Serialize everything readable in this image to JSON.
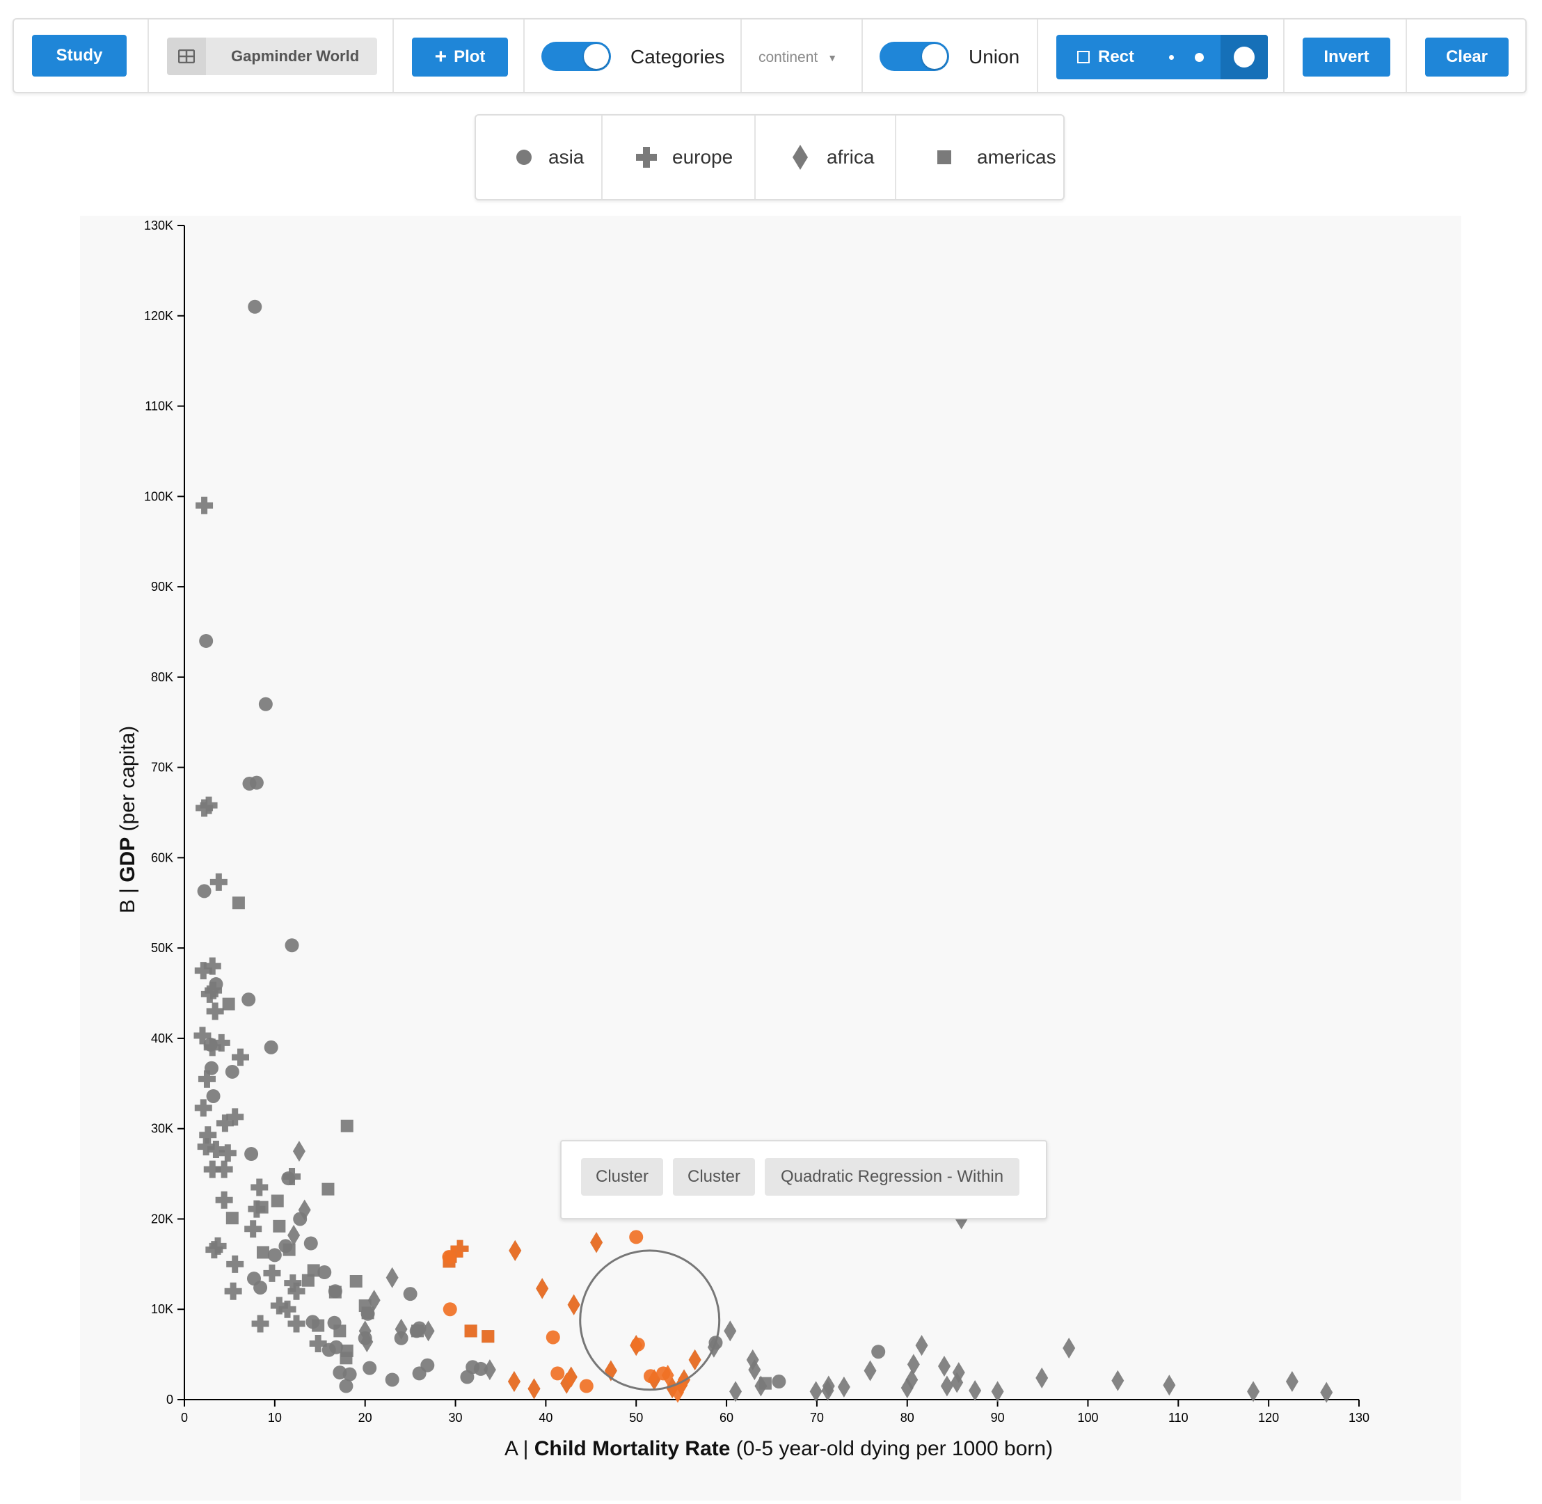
{
  "toolbar": {
    "study_label": "Study",
    "dataset_label": "Gapminder World",
    "plot_label": "Plot",
    "categories_label": "Categories",
    "categories_on": true,
    "category_select_value": "continent",
    "union_label": "Union",
    "union_on": true,
    "rect_label": "Rect",
    "invert_label": "Invert",
    "clear_label": "Clear",
    "accent_color": "#1f86d8"
  },
  "legend": {
    "items": [
      {
        "label": "asia",
        "icon": "circle-icon"
      },
      {
        "label": "europe",
        "icon": "plus-icon"
      },
      {
        "label": "africa",
        "icon": "diamond-icon"
      },
      {
        "label": "americas",
        "icon": "square-icon"
      }
    ]
  },
  "popup": {
    "chips": [
      "Cluster",
      "Cluster",
      "Quadratic Regression - Within"
    ]
  },
  "chart_data": {
    "type": "scatter",
    "x_axis": {
      "prefix": "A | ",
      "bold": "Child Mortality Rate",
      "suffix": " (0-5 year-old dying per 1000 born)",
      "range": [
        0,
        130
      ],
      "ticks": [
        "0",
        "10",
        "20",
        "30",
        "40",
        "50",
        "60",
        "70",
        "80",
        "90",
        "100",
        "110",
        "120",
        "130"
      ]
    },
    "y_axis": {
      "prefix": "B | ",
      "bold": "GDP",
      "suffix": " (per capita)",
      "range": [
        0,
        130000
      ],
      "ticks": [
        "0",
        "10K",
        "20K",
        "30K",
        "40K",
        "50K",
        "60K",
        "70K",
        "80K",
        "90K",
        "100K",
        "110K",
        "120K",
        "130K"
      ]
    },
    "colors": {
      "default": "#7a7a7a",
      "selected": "#f07125",
      "lasso": "#777777"
    },
    "lasso_circle": {
      "cx": 51.5,
      "cy": 8800,
      "r_x_units": 7.7
    },
    "series": [
      {
        "name": "asia",
        "shape": "circle",
        "points": [
          [
            7.8,
            121000
          ],
          [
            2.4,
            84000
          ],
          [
            9,
            77000
          ],
          [
            7.2,
            68200
          ],
          [
            8,
            68300
          ],
          [
            2.2,
            56300
          ],
          [
            11.9,
            50300
          ],
          [
            7.1,
            44300
          ],
          [
            9.6,
            39000
          ],
          [
            3,
            36700
          ],
          [
            5.3,
            36300
          ],
          [
            3.2,
            33600
          ],
          [
            2.9,
            39300
          ],
          [
            3.5,
            46000
          ],
          [
            7.4,
            27200
          ],
          [
            11.5,
            24500
          ],
          [
            12.8,
            20000
          ],
          [
            14,
            17300
          ],
          [
            7.7,
            13400
          ],
          [
            8.4,
            12400
          ],
          [
            11.2,
            17000
          ],
          [
            10,
            16000
          ],
          [
            16.7,
            12000
          ],
          [
            15.5,
            14100
          ],
          [
            25,
            11700
          ],
          [
            20.3,
            9500
          ],
          [
            26,
            7900
          ],
          [
            20,
            6800
          ],
          [
            24,
            6800
          ],
          [
            16.8,
            5800
          ],
          [
            16,
            5500
          ],
          [
            17.2,
            3000
          ],
          [
            20.5,
            3500
          ],
          [
            18.3,
            2800
          ],
          [
            17.9,
            1500
          ],
          [
            23,
            2200
          ],
          [
            26.9,
            3800
          ],
          [
            26,
            2900
          ],
          [
            31.9,
            3600
          ],
          [
            31.3,
            2500
          ],
          [
            32.8,
            3400
          ],
          [
            58.8,
            6300
          ],
          [
            76.8,
            5300
          ],
          [
            65.8,
            2000
          ],
          [
            14.2,
            8600
          ],
          [
            16.6,
            8500
          ],
          [
            25.7,
            7600
          ]
        ]
      },
      {
        "name": "europe",
        "shape": "plus",
        "points": [
          [
            2.2,
            99000
          ],
          [
            2.2,
            65500
          ],
          [
            2.7,
            65800
          ],
          [
            3.8,
            57300
          ],
          [
            2.1,
            47500
          ],
          [
            3.1,
            48000
          ],
          [
            3.2,
            45300
          ],
          [
            2.8,
            44900
          ],
          [
            3.4,
            43000
          ],
          [
            2,
            40300
          ],
          [
            4.1,
            39500
          ],
          [
            3.1,
            39000
          ],
          [
            6.2,
            37900
          ],
          [
            2.5,
            35500
          ],
          [
            2.1,
            32300
          ],
          [
            2.6,
            29300
          ],
          [
            2.4,
            28000
          ],
          [
            3.5,
            27700
          ],
          [
            4.8,
            27300
          ],
          [
            4.5,
            30600
          ],
          [
            5.6,
            31300
          ],
          [
            3.1,
            25500
          ],
          [
            4.4,
            25500
          ],
          [
            11.9,
            24700
          ],
          [
            8.3,
            23500
          ],
          [
            4.4,
            22100
          ],
          [
            8,
            21100
          ],
          [
            7.6,
            18900
          ],
          [
            3.7,
            17000
          ],
          [
            5.6,
            15000
          ],
          [
            9.7,
            14000
          ],
          [
            5.4,
            12000
          ],
          [
            10.5,
            10400
          ],
          [
            12,
            12900
          ],
          [
            12.4,
            12000
          ],
          [
            11.4,
            10000
          ],
          [
            8.4,
            8400
          ],
          [
            12.4,
            8400
          ],
          [
            14.8,
            6200
          ],
          [
            29.8,
            16100
          ],
          [
            30.5,
            16700
          ],
          [
            3.3,
            16600
          ]
        ]
      },
      {
        "name": "africa",
        "shape": "diamond",
        "points": [
          [
            12.7,
            27500
          ],
          [
            13.3,
            21000
          ],
          [
            12.1,
            18200
          ],
          [
            23,
            13500
          ],
          [
            21,
            11000
          ],
          [
            20,
            7600
          ],
          [
            24,
            7800
          ],
          [
            27,
            7600
          ],
          [
            20.2,
            6400
          ],
          [
            33.8,
            3300
          ],
          [
            36.6,
            16500
          ],
          [
            45.6,
            17400
          ],
          [
            39.6,
            12300
          ],
          [
            43.1,
            10500
          ],
          [
            36.5,
            2000
          ],
          [
            38.7,
            1200
          ],
          [
            42.3,
            1800
          ],
          [
            42.8,
            2500
          ],
          [
            47.2,
            3200
          ],
          [
            50,
            6000
          ],
          [
            52,
            2200
          ],
          [
            54,
            1300
          ],
          [
            55,
            1600
          ],
          [
            56.5,
            4400
          ],
          [
            55.3,
            2200
          ],
          [
            60.4,
            7600
          ],
          [
            58.6,
            5800
          ],
          [
            62.9,
            4400
          ],
          [
            63.1,
            3300
          ],
          [
            63.8,
            1500
          ],
          [
            61,
            900
          ],
          [
            69.9,
            900
          ],
          [
            71.2,
            1000
          ],
          [
            71.3,
            1500
          ],
          [
            73,
            1400
          ],
          [
            75.9,
            3200
          ],
          [
            80,
            1300
          ],
          [
            80.5,
            2200
          ],
          [
            80.7,
            3900
          ],
          [
            81.6,
            6000
          ],
          [
            84.1,
            3700
          ],
          [
            84.4,
            1500
          ],
          [
            85.5,
            1900
          ],
          [
            85.7,
            3000
          ],
          [
            87.5,
            1000
          ],
          [
            90,
            900
          ],
          [
            94.9,
            2400
          ],
          [
            97.9,
            5700
          ],
          [
            103.3,
            2100
          ],
          [
            109,
            1600
          ],
          [
            118.3,
            900
          ],
          [
            122.6,
            2000
          ],
          [
            126.4,
            800
          ],
          [
            86,
            20000
          ]
        ]
      },
      {
        "name": "americas",
        "shape": "square",
        "points": [
          [
            6,
            55000
          ],
          [
            18,
            30300
          ],
          [
            4.9,
            43800
          ],
          [
            15.9,
            23300
          ],
          [
            8.6,
            21300
          ],
          [
            10.3,
            22000
          ],
          [
            5.3,
            20100
          ],
          [
            10.5,
            19200
          ],
          [
            8.7,
            16300
          ],
          [
            11.6,
            16600
          ],
          [
            14.3,
            14300
          ],
          [
            13.7,
            13200
          ],
          [
            16.7,
            11900
          ],
          [
            14.8,
            8200
          ],
          [
            17.2,
            7600
          ],
          [
            17.9,
            4600
          ],
          [
            18,
            5400
          ],
          [
            19,
            13100
          ],
          [
            20,
            10400
          ],
          [
            20.3,
            9600
          ],
          [
            25.8,
            7600
          ],
          [
            29.3,
            15300
          ],
          [
            31.7,
            7600
          ],
          [
            33.6,
            7000
          ],
          [
            64.3,
            1800
          ]
        ]
      }
    ],
    "selected": [
      [
        "circle",
        29.3,
        15800
      ],
      [
        "circle",
        29.4,
        10000
      ],
      [
        "circle",
        40.8,
        6900
      ],
      [
        "circle",
        41.3,
        2900
      ],
      [
        "circle",
        44.5,
        1500
      ],
      [
        "circle",
        50.2,
        6100
      ],
      [
        "circle",
        51.6,
        2600
      ],
      [
        "circle",
        53,
        2900
      ],
      [
        "circle",
        50,
        18000
      ],
      [
        "plus",
        29.8,
        16100
      ],
      [
        "plus",
        30.5,
        16700
      ],
      [
        "square",
        29.3,
        15300
      ],
      [
        "square",
        31.7,
        7600
      ],
      [
        "square",
        33.6,
        7000
      ],
      [
        "diamond",
        36.6,
        16500
      ],
      [
        "diamond",
        45.6,
        17400
      ],
      [
        "diamond",
        39.6,
        12300
      ],
      [
        "diamond",
        43.1,
        10500
      ],
      [
        "diamond",
        36.5,
        2000
      ],
      [
        "diamond",
        38.7,
        1200
      ],
      [
        "diamond",
        42.3,
        1800
      ],
      [
        "diamond",
        42.8,
        2500
      ],
      [
        "diamond",
        47.2,
        3200
      ],
      [
        "diamond",
        50,
        6000
      ],
      [
        "diamond",
        52,
        2200
      ],
      [
        "diamond",
        54,
        1300
      ],
      [
        "diamond",
        55,
        1600
      ],
      [
        "diamond",
        56.5,
        4400
      ],
      [
        "diamond",
        55.3,
        2200
      ],
      [
        "diamond",
        53.5,
        2700
      ],
      [
        "diamond",
        54.6,
        800
      ]
    ]
  }
}
